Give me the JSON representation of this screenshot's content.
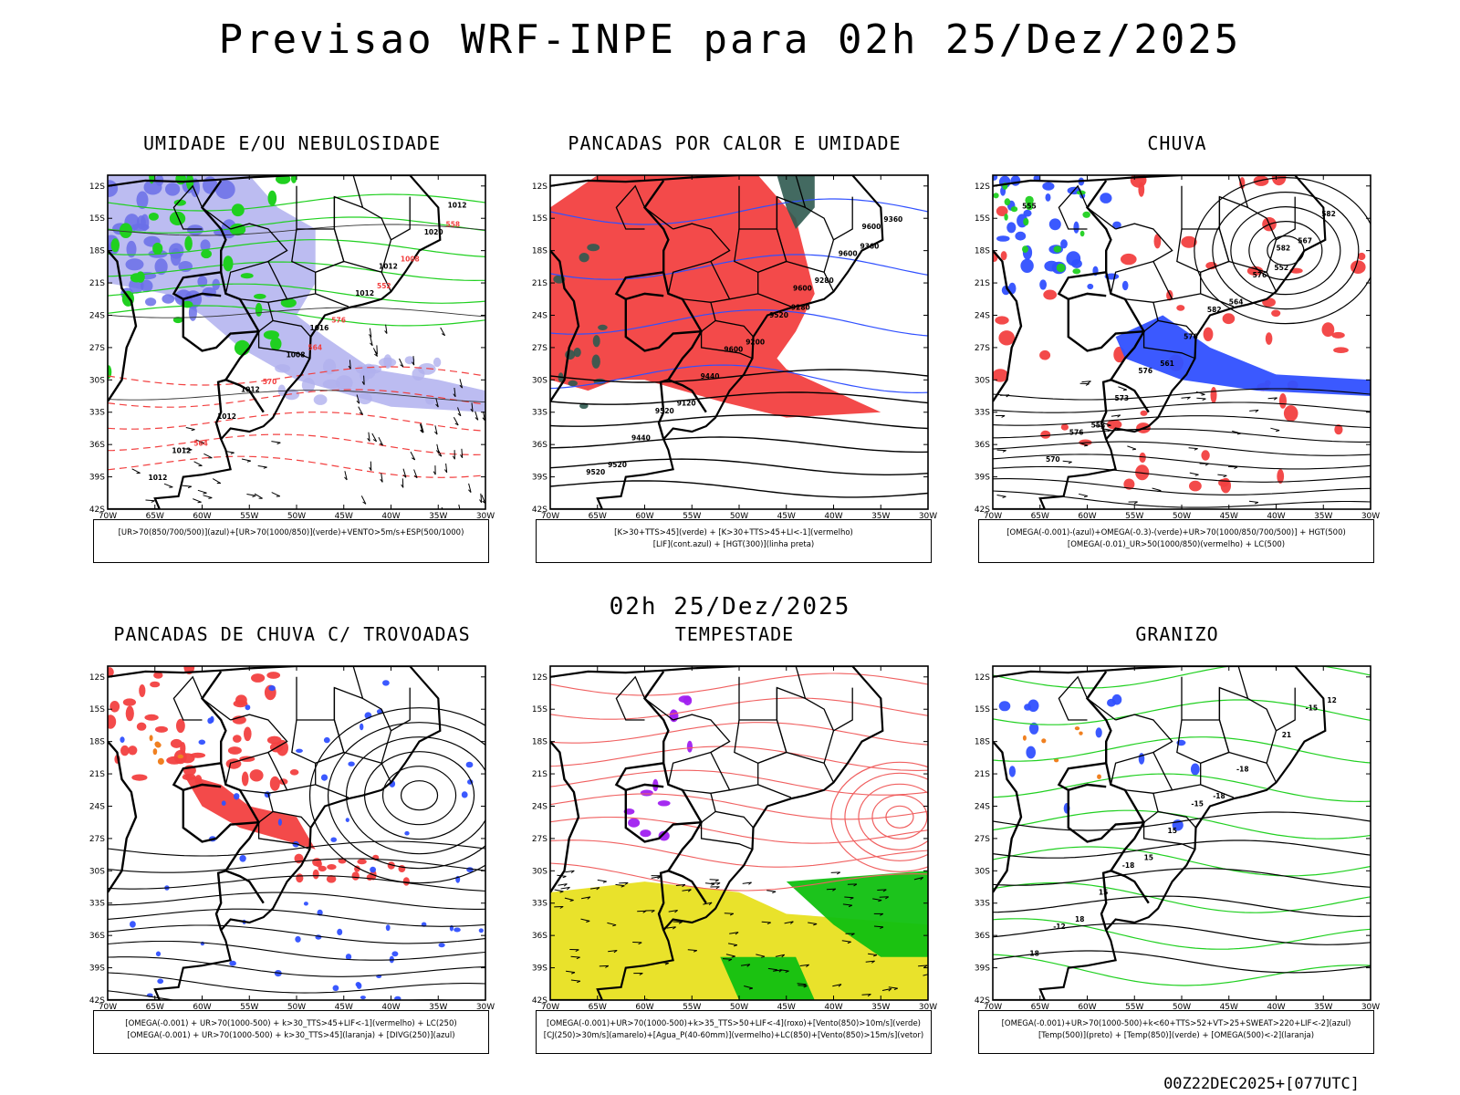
{
  "header": {
    "title": "Previsao WRF-INPE  para 02h 25/Dez/2025"
  },
  "subheader": {
    "time_label": "02h 25/Dez/2025"
  },
  "footer": {
    "run_label": "00Z22DEC2025+[077UTC]"
  },
  "axes": {
    "lat_ticks": [
      "12S",
      "15S",
      "18S",
      "21S",
      "24S",
      "27S",
      "30S",
      "33S",
      "36S",
      "39S",
      "42S"
    ],
    "lon_ticks": [
      "70W",
      "65W",
      "60W",
      "55W",
      "50W",
      "45W",
      "40W",
      "35W",
      "30W"
    ]
  },
  "colors": {
    "red": "#f24040",
    "blue": "#3050ff",
    "green": "#20d020",
    "lavender": "#b0b0ee",
    "teal": "#2f5a50",
    "yellow": "#e8e020",
    "purple": "#a020f0",
    "orange": "#f08020"
  },
  "panels": [
    {
      "title": "UMIDADE E/OU NEBULOSIDADE",
      "legend": [
        "[UR>70(850/700/500)](azul)+[UR>70(1000/850)](verde)+VENTO>5m/s+ESP(500/1000)"
      ],
      "contour_labels": [
        "1012",
        "1012",
        "1016",
        "1012",
        "1012",
        "1020",
        "1012",
        "1008",
        "1012",
        "1012",
        "1008",
        "576",
        "570",
        "564",
        "558",
        "552",
        "564"
      ]
    },
    {
      "title": "PANCADAS POR CALOR E UMIDADE",
      "legend": [
        "[K>30+TTS>45](verde) + [K>30+TTS>45+LI<-1](vermelho)",
        "[LIF](cont.azul) + [HGT(300)](linha preta)"
      ],
      "contour_labels": [
        "9600",
        "9600",
        "9600",
        "9520",
        "9520",
        "9600",
        "9520",
        "9440",
        "9440",
        "9360",
        "9280",
        "9200",
        "9120",
        "9520",
        "9360",
        "9280"
      ]
    },
    {
      "title": "CHUVA",
      "legend": [
        "[OMEGA(-0.001)-(azul)+OMEGA(-0.3)-(verde)+UR>70(1000/850/700/500)] + HGT(500)",
        "[OMEGA(-0.01)_UR>50(1000/850)(vermelho) + LC(500)"
      ],
      "contour_labels": [
        "582",
        "582",
        "576",
        "576",
        "582",
        "576",
        "576",
        "573",
        "570",
        "567",
        "564",
        "561",
        "558",
        "555",
        "552"
      ]
    },
    {
      "title": "PANCADAS DE CHUVA C/ TROVOADAS",
      "legend": [
        "[OMEGA(-0.001) + UR>70(1000-500) + k>30_TTS>45+LIF<-1](vermelho) + LC(250)",
        "[OMEGA(-0.001) + UR>70(1000-500) + k>30_TTS>45](laranja) + [DIVG(250)](azul)"
      ],
      "contour_labels": []
    },
    {
      "title": "TEMPESTADE",
      "legend": [
        "[OMEGA(-0.001)+UR>70(1000-500)+k>35_TTS>50+LIF<-4](roxo)+[Vento(850)>10m/s](verde)",
        "[CJ(250)>30m/s](amarelo)+[Agua_P(40-60mm)](vermelho)+LC(850)+[Vento(850)>15m/s](vetor)"
      ],
      "contour_labels": []
    },
    {
      "title": "GRANIZO",
      "legend": [
        "[OMEGA(-0.001)+UR>70(1000-500)+k<60+TTS>52+VT>25+SWEAT>220+LIF<-2](azul)",
        "[Temp(500)](preto) + [Temp(850)](verde) + [OMEGA(500)<-2](laranja)"
      ],
      "contour_labels": [
        "-15",
        "-18",
        "-12",
        "-15",
        "-18",
        "15",
        "15",
        "18",
        "21",
        "-18",
        "15",
        "18",
        "12"
      ]
    }
  ]
}
